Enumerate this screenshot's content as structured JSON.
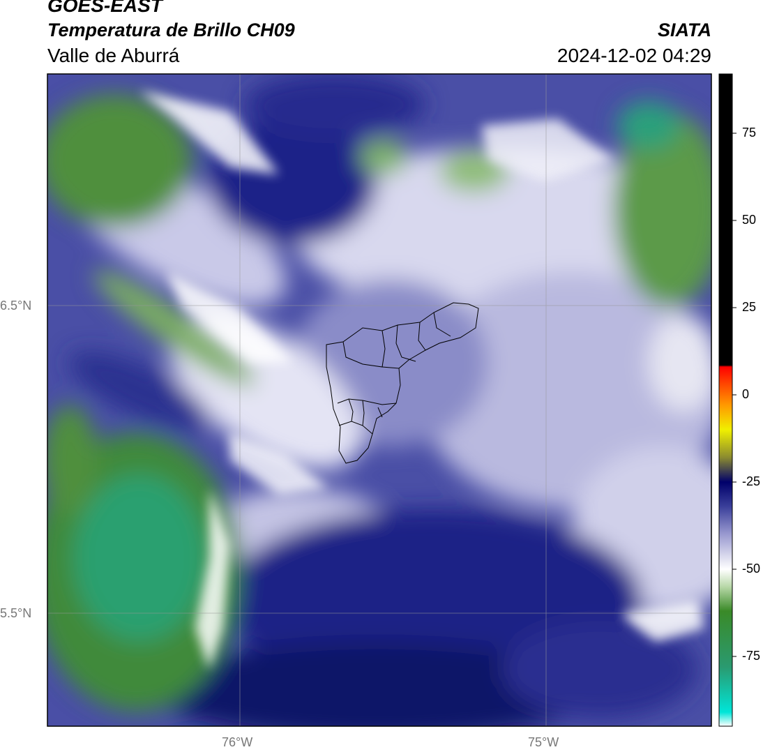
{
  "header": {
    "satellite": "GOES-EAST",
    "product": "Temperatura de Brillo CH09",
    "region": "Valle de Aburrá",
    "agency": "SIATA",
    "timestamp": "2024-12-02 04:29"
  },
  "map": {
    "lat_labels": [
      "6.5°N",
      "5.5°N"
    ],
    "lon_labels": [
      "76°W",
      "75°W"
    ]
  },
  "colorbar": {
    "ticks": [
      "75",
      "50",
      "25",
      "0",
      "-25",
      "-50",
      "-75"
    ],
    "tick_values": [
      75,
      50,
      25,
      0,
      -25,
      -50,
      -75
    ],
    "range": [
      -95,
      92
    ],
    "stops": [
      {
        "v": -95,
        "c": "#ffffff"
      },
      {
        "v": -91,
        "c": "#00e5d8"
      },
      {
        "v": -78,
        "c": "#2a9a70"
      },
      {
        "v": -62,
        "c": "#3a8a28"
      },
      {
        "v": -55,
        "c": "#b8d8a8"
      },
      {
        "v": -50,
        "c": "#ffffff"
      },
      {
        "v": -40,
        "c": "#9a9ad0"
      },
      {
        "v": -32,
        "c": "#3a3f9a"
      },
      {
        "v": -25,
        "c": "#00006a"
      },
      {
        "v": -18,
        "c": "#8a8a30"
      },
      {
        "v": -10,
        "c": "#f0f000"
      },
      {
        "v": -3,
        "c": "#ff9a00"
      },
      {
        "v": 4,
        "c": "#ff3a00"
      },
      {
        "v": 8,
        "c": "#ff0000"
      },
      {
        "v": 8.5,
        "c": "#000000"
      },
      {
        "v": 92,
        "c": "#000000"
      }
    ]
  },
  "colors": {
    "deep_blue": "#141a74",
    "mid_blue": "#5a5fb0",
    "pale_lavender": "#c9c9e6",
    "green": "#4a8c3a",
    "light_green": "#a9cf95",
    "teal": "#2aa070"
  }
}
